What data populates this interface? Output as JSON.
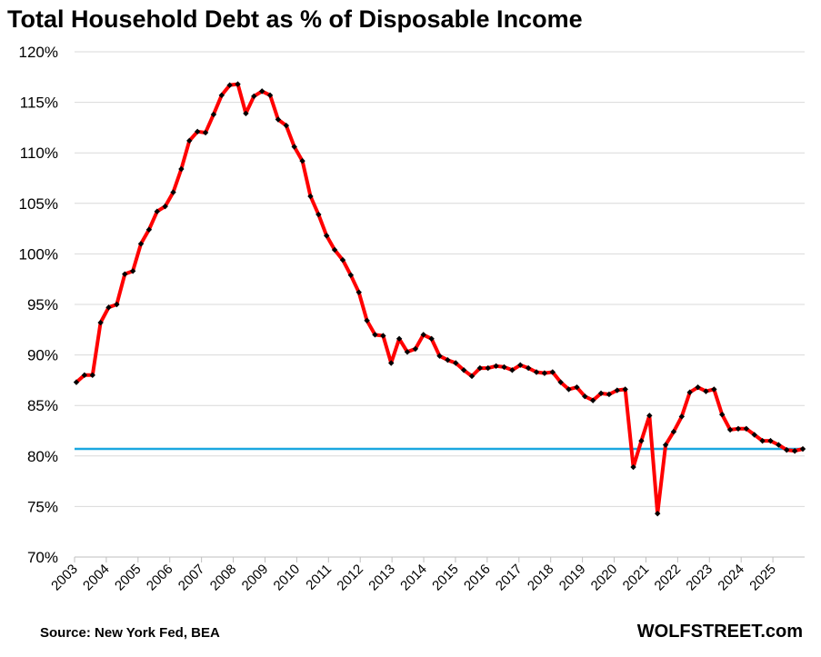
{
  "chart_data": {
    "type": "line",
    "title": "Total Household Debt as % of Disposable Income",
    "xlabel": "",
    "ylabel": "",
    "ylim": [
      70,
      120
    ],
    "yticks": [
      "70%",
      "75%",
      "80%",
      "85%",
      "90%",
      "95%",
      "100%",
      "105%",
      "110%",
      "115%",
      "120%"
    ],
    "xticks": [
      "2003",
      "2004",
      "2005",
      "2006",
      "2007",
      "2008",
      "2009",
      "2010",
      "2011",
      "2012",
      "2013",
      "2014",
      "2015",
      "2016",
      "2017",
      "2018",
      "2019",
      "2020",
      "2021",
      "2022",
      "2023",
      "2024",
      "2025"
    ],
    "grid": true,
    "reference_line": {
      "value": 80.7,
      "color": "#1aa7e0"
    },
    "series": [
      {
        "name": "",
        "color": "#ff0000",
        "marker_color": "#000000",
        "values": [
          87.3,
          88.0,
          88.0,
          93.2,
          94.7,
          95.0,
          98.0,
          98.3,
          101.0,
          102.4,
          104.2,
          104.7,
          106.1,
          108.4,
          111.2,
          112.1,
          112.0,
          113.8,
          115.7,
          116.7,
          116.8,
          113.9,
          115.6,
          116.1,
          115.7,
          113.3,
          112.7,
          110.6,
          109.2,
          105.7,
          103.9,
          101.8,
          100.4,
          99.4,
          97.9,
          96.2,
          93.4,
          92.0,
          91.9,
          89.2,
          91.6,
          90.3,
          90.6,
          92.0,
          91.6,
          89.9,
          89.5,
          89.2,
          88.5,
          87.9,
          88.7,
          88.7,
          88.9,
          88.8,
          88.5,
          89.0,
          88.7,
          88.3,
          88.2,
          88.3,
          87.3,
          86.6,
          86.8,
          85.9,
          85.5,
          86.2,
          86.1,
          86.5,
          86.6,
          78.9,
          81.5,
          84.0,
          74.3,
          81.1,
          82.4,
          83.9,
          86.3,
          86.8,
          86.4,
          86.6,
          84.1,
          82.6,
          82.7,
          82.7,
          82.1,
          81.5,
          81.5,
          81.1,
          80.6,
          80.5,
          80.7
        ]
      }
    ]
  },
  "footer": {
    "source": "Source: New York Fed, BEA",
    "brand": "WOLFSTREET.com"
  }
}
